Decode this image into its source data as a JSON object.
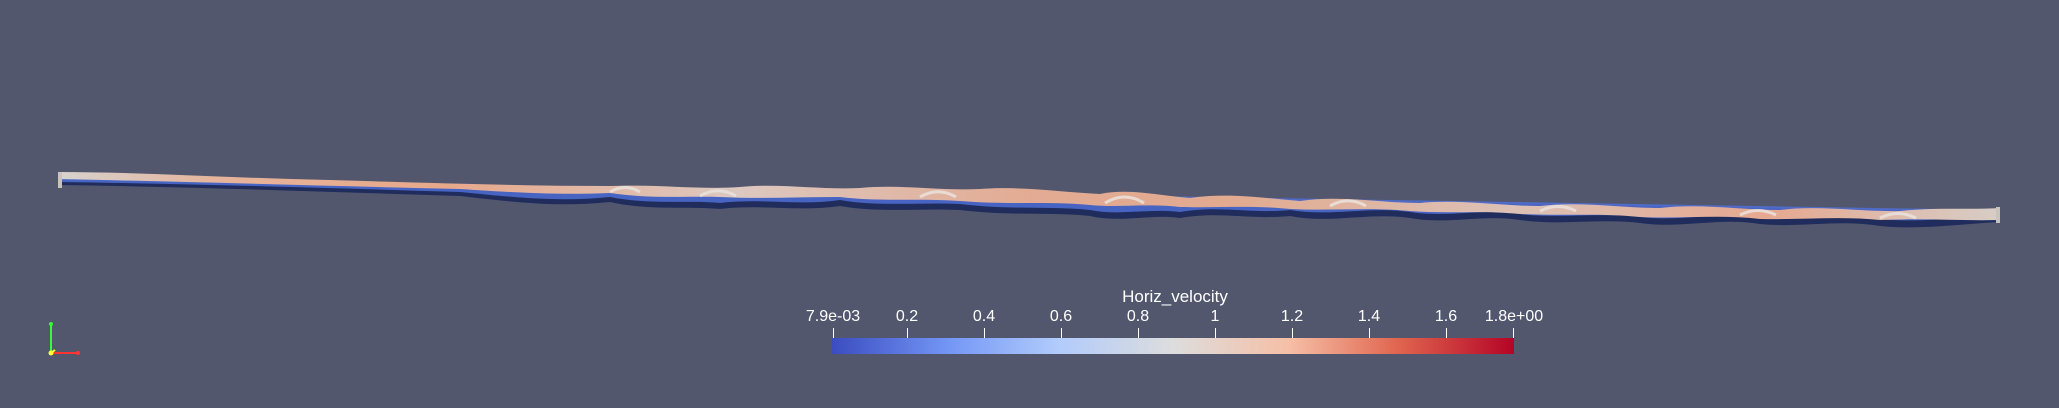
{
  "scene": {
    "background": "#52576e",
    "object": "ribbon-surface"
  },
  "colorbar": {
    "title": "Horiz_velocity",
    "labels": [
      "7.9e-03",
      "0.2",
      "0.4",
      "0.6",
      "0.8",
      "1",
      "1.2",
      "1.4",
      "1.6",
      "1.8e+00"
    ],
    "colormap": [
      "#3b4cc0",
      "#7396f5",
      "#b1cbfc",
      "#dddddd",
      "#f6bfa6",
      "#e0654f",
      "#b40426"
    ]
  },
  "axes": {
    "icon": "orientation-axes-icon",
    "colors": {
      "x": "#ff3333",
      "y": "#ffff33",
      "z": "#33ff33"
    }
  }
}
